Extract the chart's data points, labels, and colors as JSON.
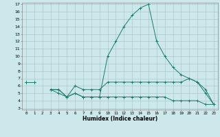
{
  "x": [
    0,
    1,
    2,
    3,
    4,
    5,
    6,
    7,
    8,
    9,
    10,
    11,
    12,
    13,
    14,
    15,
    16,
    17,
    18,
    19,
    20,
    21,
    22,
    23
  ],
  "line1": [
    6.5,
    6.5,
    null,
    5.5,
    5.5,
    4.5,
    5.0,
    4.5,
    4.5,
    4.5,
    10.0,
    12.0,
    14.0,
    15.5,
    16.5,
    17.0,
    12.0,
    10.0,
    8.5,
    7.5,
    7.0,
    6.5,
    5.0,
    3.5
  ],
  "line2": [
    6.5,
    6.5,
    null,
    5.5,
    5.5,
    4.5,
    6.0,
    5.5,
    5.5,
    5.5,
    6.5,
    6.5,
    6.5,
    6.5,
    6.5,
    6.5,
    6.5,
    6.5,
    6.5,
    6.5,
    7.0,
    6.5,
    5.5,
    3.5
  ],
  "line3": [
    6.5,
    6.5,
    null,
    5.5,
    5.0,
    4.5,
    5.0,
    4.5,
    4.5,
    4.5,
    4.5,
    4.5,
    4.5,
    4.5,
    4.5,
    4.5,
    4.5,
    4.5,
    4.0,
    4.0,
    4.0,
    4.0,
    3.5,
    3.5
  ],
  "color": "#1a7a6e",
  "bg_color": "#cde8ea",
  "grid_color": "#adc8ca",
  "xlabel": "Humidex (Indice chaleur)",
  "ylim": [
    3,
    17
  ],
  "xlim": [
    -0.5,
    23.5
  ],
  "yticks": [
    3,
    4,
    5,
    6,
    7,
    8,
    9,
    10,
    11,
    12,
    13,
    14,
    15,
    16,
    17
  ],
  "xticks": [
    0,
    1,
    2,
    3,
    4,
    5,
    6,
    7,
    8,
    9,
    10,
    11,
    12,
    13,
    14,
    15,
    16,
    17,
    18,
    19,
    20,
    21,
    22,
    23
  ]
}
